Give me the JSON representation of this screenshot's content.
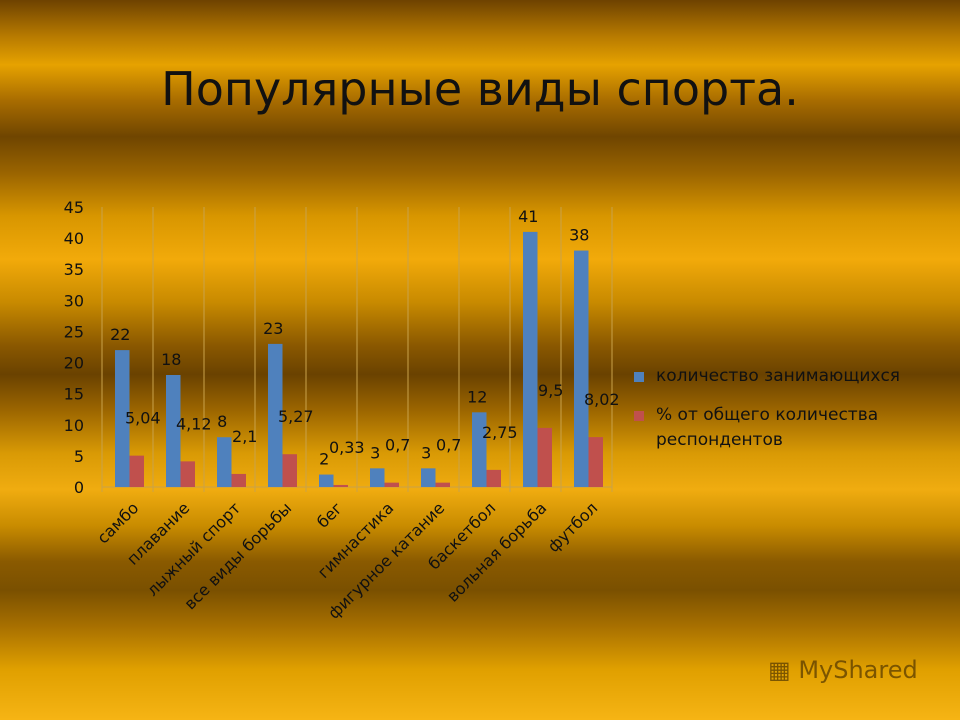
{
  "title": "Популярные виды спорта.",
  "chart_data": {
    "type": "bar",
    "categories": [
      "самбо",
      "плавание",
      "лыжный спорт",
      "все виды борьбы",
      "бег",
      "гимнастика",
      "фигурное катание",
      "баскетбол",
      "вольная борьба",
      "футбол"
    ],
    "series": [
      {
        "name": "количество занимающихся",
        "color": "#4f81bd",
        "values": [
          22,
          18,
          8,
          23,
          2,
          3,
          3,
          12,
          41,
          38
        ],
        "labels": [
          "22",
          "18",
          "8",
          "23",
          "2",
          "3",
          "3",
          "12",
          "41",
          "38"
        ]
      },
      {
        "name": "% от общего количества респондентов",
        "color": "#c0504d",
        "values": [
          5.04,
          4.12,
          2.1,
          5.27,
          0.33,
          0.7,
          0.7,
          2.75,
          9.5,
          8.02
        ],
        "labels": [
          "5,04",
          "4,12",
          "2,1",
          "5,27",
          "0,33",
          "0,7",
          "0,7",
          "2,75",
          "9,5",
          "8,02"
        ]
      }
    ],
    "ylim": [
      0,
      45
    ],
    "yticks": [
      0,
      5,
      10,
      15,
      20,
      25,
      30,
      35,
      40,
      45
    ],
    "grid": "vertical",
    "legend": "right"
  },
  "watermark": "MyShared"
}
